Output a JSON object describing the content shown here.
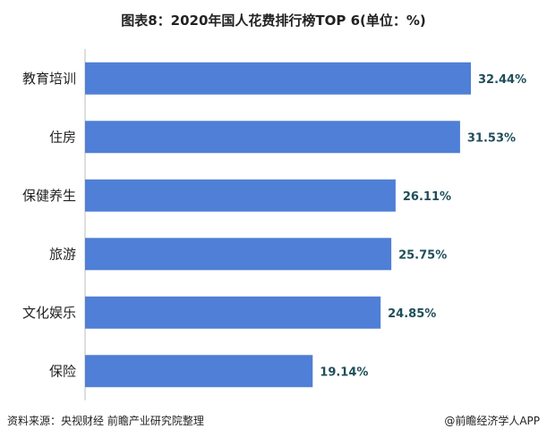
{
  "title": "图表8：2020年国人花费排行榜TOP 6(单位：%)",
  "chart_data": {
    "type": "bar",
    "orientation": "horizontal",
    "title": "图表8：2020年国人花费排行榜TOP 6(单位：%)",
    "categories": [
      "教育培训",
      "住房",
      "保健养生",
      "旅游",
      "文化娱乐",
      "保险"
    ],
    "values": [
      32.44,
      31.53,
      26.11,
      25.75,
      24.85,
      19.14
    ],
    "value_labels": [
      "32.44%",
      "31.53%",
      "26.11%",
      "25.75%",
      "24.85%",
      "19.14%"
    ],
    "xlim": [
      0,
      35
    ],
    "bar_color": "#4f7fd6",
    "grid": false,
    "legend": "none"
  },
  "footer": {
    "source": "资料来源：央视财经 前瞻产业研究院整理",
    "credit": "@前瞻经济学人APP"
  }
}
